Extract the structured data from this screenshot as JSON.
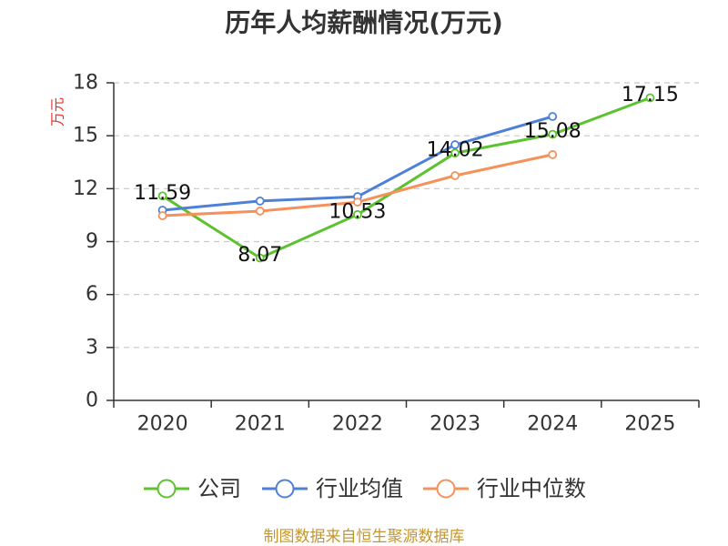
{
  "footer": "制图数据来自恒生聚源数据库",
  "colors": {
    "ylabel": "#e0352b",
    "footer": "#c4962f",
    "grid": "#c8c8c8",
    "axis": "#333333"
  },
  "chart_data": {
    "type": "line",
    "title": "历年人均薪酬情况(万元)",
    "ylabel": "万元",
    "categories": [
      "2020",
      "2021",
      "2022",
      "2023",
      "2024",
      "2025"
    ],
    "ylim": [
      0,
      18
    ],
    "yticks": [
      0,
      3,
      6,
      9,
      12,
      15,
      18
    ],
    "grid": true,
    "legend": "bottom",
    "series": [
      {
        "name": "公司",
        "color": "#5cc22f",
        "show_labels": true,
        "values": [
          11.59,
          8.07,
          10.53,
          14.02,
          15.08,
          17.15
        ]
      },
      {
        "name": "行业均值",
        "color": "#4e80d8",
        "show_labels": false,
        "values": [
          10.78,
          11.3,
          11.55,
          14.49,
          16.09,
          null
        ]
      },
      {
        "name": "行业中位数",
        "color": "#f5915b",
        "show_labels": false,
        "values": [
          10.47,
          10.73,
          11.24,
          12.74,
          13.93,
          null
        ]
      }
    ]
  }
}
